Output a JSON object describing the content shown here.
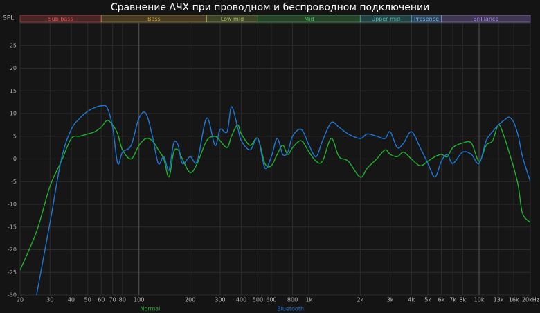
{
  "chart_data": {
    "type": "line",
    "title": "Сравнение АЧХ при проводном и беспроводном подключении",
    "y_label": "SPL",
    "log_x": true,
    "grid": true,
    "legend": "bottom",
    "bands": [
      {
        "name": "Sub bass",
        "from": 20,
        "to": 60,
        "color": "#e05050"
      },
      {
        "name": "Bass",
        "from": 60,
        "to": 250,
        "color": "#c8a040"
      },
      {
        "name": "Low mid",
        "from": 250,
        "to": 500,
        "color": "#a8c060"
      },
      {
        "name": "Mid",
        "from": 500,
        "to": 2000,
        "color": "#50c060"
      },
      {
        "name": "Upper mid",
        "from": 2000,
        "to": 4000,
        "color": "#50b8b8"
      },
      {
        "name": "Presence",
        "from": 4000,
        "to": 6000,
        "color": "#70b0f0"
      },
      {
        "name": "Brilliance",
        "from": 6000,
        "to": 20000,
        "color": "#b090f0"
      }
    ],
    "x": [
      20,
      25,
      30,
      35,
      40,
      45,
      50,
      55,
      60,
      65,
      70,
      75,
      80,
      90,
      100,
      110,
      120,
      130,
      140,
      150,
      160,
      170,
      180,
      200,
      220,
      250,
      280,
      300,
      330,
      350,
      380,
      400,
      450,
      500,
      550,
      600,
      650,
      700,
      750,
      800,
      900,
      1000,
      1100,
      1200,
      1350,
      1500,
      1700,
      2000,
      2200,
      2500,
      2800,
      3000,
      3300,
      3600,
      4000,
      4500,
      5000,
      5500,
      6000,
      6500,
      7000,
      8000,
      9000,
      10000,
      11000,
      12000,
      13000,
      14000,
      15000,
      16000,
      17000,
      18000,
      20000
    ],
    "series": [
      {
        "name": "Normal",
        "color": "#22b030",
        "values": [
          -24.5,
          -16,
          -6,
          -0.5,
          4.5,
          5,
          5.5,
          6,
          7,
          8.5,
          7.5,
          5.5,
          2,
          0,
          3,
          4.5,
          4,
          2,
          0,
          -4,
          1.5,
          2,
          0,
          -3,
          -1,
          4,
          5,
          4,
          2.5,
          5,
          7.5,
          5.5,
          3,
          4.5,
          -1,
          -1.5,
          1,
          3,
          1,
          2.5,
          4,
          1.5,
          -0.5,
          -0.5,
          4.5,
          0.5,
          -0.5,
          -4,
          -2,
          0,
          2,
          1,
          0.5,
          1.5,
          0,
          -1.5,
          -0.5,
          0.5,
          1,
          0.5,
          2.5,
          3.5,
          3.5,
          -0.5,
          3,
          4,
          7.5,
          5,
          1.5,
          -2,
          -6,
          -12,
          -14
        ]
      },
      {
        "name": "Bluetooth",
        "color": "#1e78d8",
        "values": [
          null,
          -30,
          -14,
          0,
          6.5,
          9,
          10.5,
          11.3,
          11.7,
          11.3,
          7,
          -1,
          1.5,
          3,
          9,
          10,
          5,
          -1,
          0.5,
          -2.5,
          3.5,
          3,
          -1,
          0.5,
          -0.5,
          9,
          3,
          6.5,
          6,
          11.5,
          7,
          4,
          2,
          4.5,
          -2,
          0.5,
          4.5,
          1,
          1.5,
          5,
          6.5,
          3,
          0.5,
          4,
          8,
          7,
          5.5,
          4.5,
          5.5,
          5,
          4.5,
          6,
          2.5,
          3.5,
          6,
          2.5,
          -1,
          -4,
          -0.5,
          1,
          -1,
          1.5,
          1,
          -1,
          4,
          6,
          7.5,
          8.5,
          9.2,
          8,
          5,
          0.5,
          -5
        ]
      }
    ],
    "xlim": [
      20,
      20000
    ],
    "ylim": [
      -30,
      30
    ],
    "yticks": [
      -30,
      -25,
      -20,
      -15,
      -10,
      -5,
      0,
      5,
      10,
      15,
      20,
      25
    ],
    "xticks": [
      20,
      30,
      40,
      50,
      60,
      70,
      80,
      100,
      200,
      300,
      400,
      500,
      600,
      800,
      {
        "value": 1000,
        "label": "1k"
      },
      {
        "value": 2000,
        "label": "2k"
      },
      {
        "value": 3000,
        "label": "3k"
      },
      {
        "value": 4000,
        "label": "4k"
      },
      {
        "value": 5000,
        "label": "5k"
      },
      {
        "value": 6000,
        "label": "6k"
      },
      {
        "value": 7000,
        "label": "7k"
      },
      {
        "value": 8000,
        "label": "8k"
      },
      {
        "value": 10000,
        "label": "10k"
      },
      {
        "value": 13000,
        "label": "13k"
      },
      {
        "value": 16000,
        "label": "16k"
      },
      {
        "value": 20000,
        "label": "20kHz"
      }
    ]
  }
}
